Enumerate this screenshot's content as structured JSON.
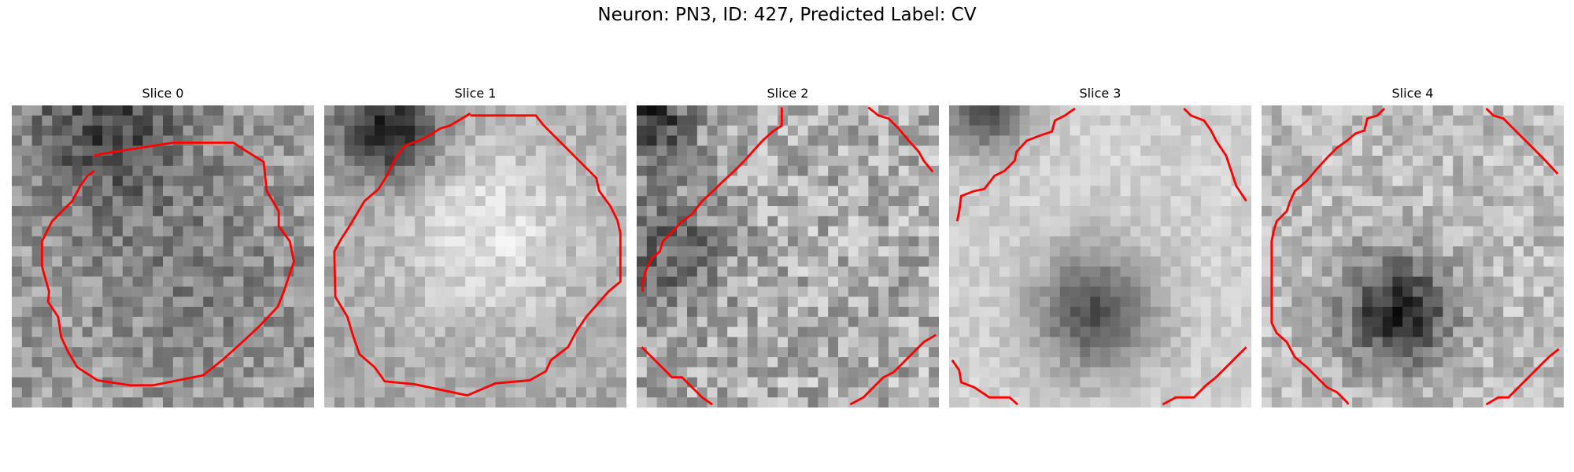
{
  "figure": {
    "title": "Neuron: PN3, ID: 427, Predicted Label: CV"
  },
  "panels": [
    {
      "title": "Slice 0",
      "description": "Noisy grayscale microscopy slice with darker patch top-left and red cell-boundary contour",
      "contour_color": "#ff0000"
    },
    {
      "title": "Slice 1",
      "description": "Grayscale slice with bright round cell body outlined by red contour",
      "contour_color": "#ff0000"
    },
    {
      "title": "Slice 2",
      "description": "Noisy grayscale slice with partial red contour arcs at corners",
      "contour_color": "#ff0000"
    },
    {
      "title": "Slice 3",
      "description": "Bright slice with darker blob in lower center and red contour arcs at corners",
      "contour_color": "#ff0000"
    },
    {
      "title": "Slice 4",
      "description": "Grayscale slice with dark speckled blob in center and red contour arcs",
      "contour_color": "#ff0000"
    }
  ]
}
